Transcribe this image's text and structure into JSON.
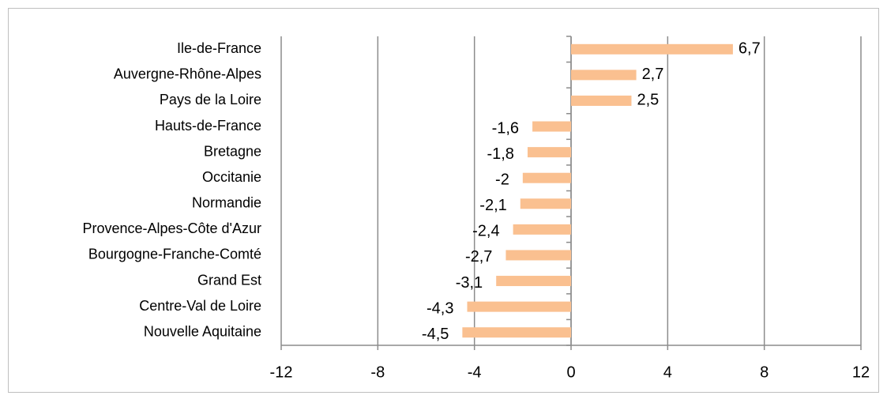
{
  "chart_data": {
    "type": "bar",
    "orientation": "horizontal",
    "categories": [
      "Ile-de-France",
      "Auvergne-Rhône-Alpes",
      "Pays de la Loire",
      "Hauts-de-France",
      "Bretagne",
      "Occitanie",
      "Normandie",
      "Provence-Alpes-Côte d'Azur",
      "Bourgogne-Franche-Comté",
      "Grand Est",
      "Centre-Val de Loire",
      "Nouvelle Aquitaine"
    ],
    "values": [
      6.7,
      2.7,
      2.5,
      -1.6,
      -1.8,
      -2,
      -2.1,
      -2.4,
      -2.7,
      -3.1,
      -4.3,
      -4.5
    ],
    "value_labels": [
      "6,7",
      "2,7",
      "2,5",
      "-1,6",
      "-1,8",
      "-2",
      "-2,1",
      "-2,4",
      "-2,7",
      "-3,1",
      "-4,3",
      "-4,5"
    ],
    "color": "#fac090",
    "xlim": [
      -12,
      12
    ],
    "xticks": [
      -12,
      -8,
      -4,
      0,
      4,
      8,
      12
    ],
    "grid": true
  }
}
